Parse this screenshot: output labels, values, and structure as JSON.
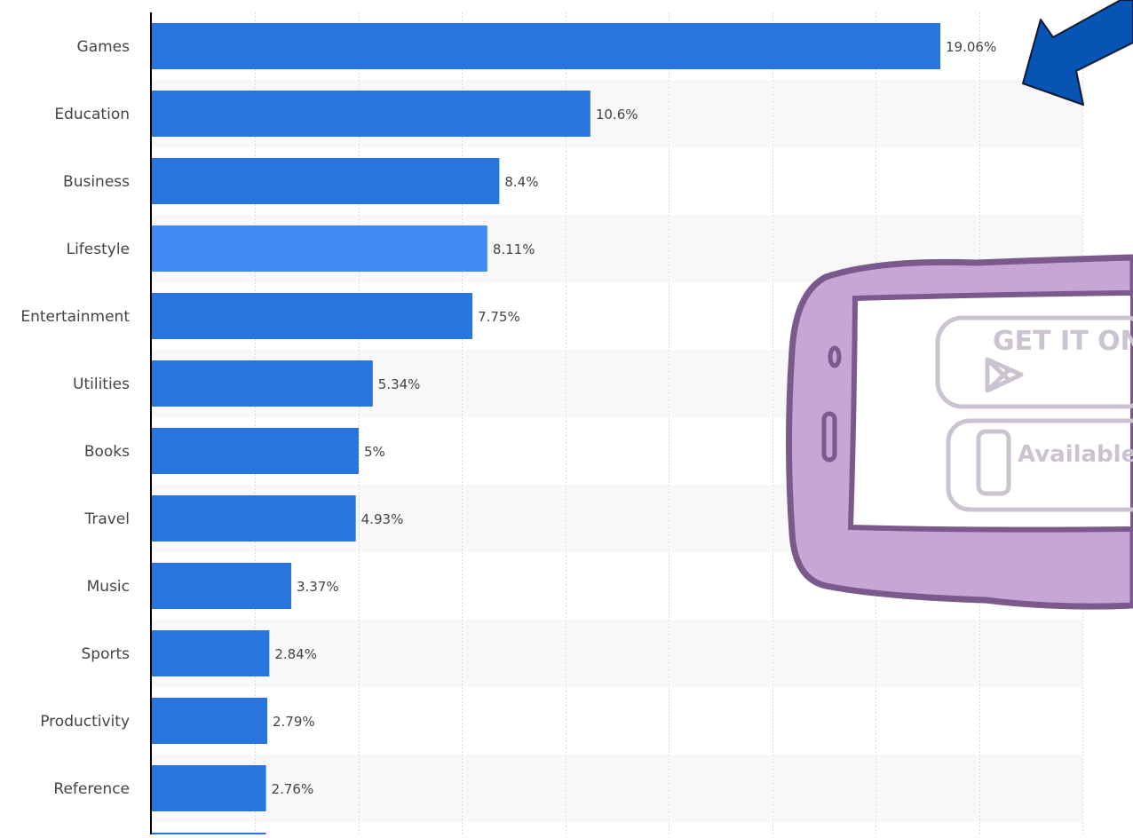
{
  "chart_data": {
    "type": "bar",
    "orientation": "horizontal",
    "title": "",
    "xlabel": "",
    "ylabel": "",
    "categories": [
      "Games",
      "Education",
      "Business",
      "Lifestyle",
      "Entertainment",
      "Utilities",
      "Books",
      "Travel",
      "Music",
      "Sports",
      "Productivity",
      "Reference",
      ""
    ],
    "values": [
      19.06,
      10.6,
      8.4,
      8.11,
      7.75,
      5.34,
      5,
      4.93,
      3.37,
      2.84,
      2.79,
      2.76,
      2.76
    ],
    "value_labels": [
      "19.06%",
      "10.6%",
      "8.4%",
      "8.11%",
      "7.75%",
      "5.34%",
      "5%",
      "4.93%",
      "3.37%",
      "2.84%",
      "2.79%",
      "2.76%",
      ""
    ],
    "highlight_index": 3,
    "xlim": [
      0,
      22.5
    ],
    "grid": true,
    "legend": "none",
    "colors": {
      "bar": "#2876dd",
      "highlight": "#418bf7",
      "grid": "#dcdcdc",
      "band": "#f8f8f8",
      "axis": "#000000",
      "label": "#444444"
    }
  },
  "overlay": {
    "arrow_color": "#0654b4",
    "arrow_outline": "#0a1a33",
    "tablet_fill": "#c7a6d6",
    "tablet_outline": "#7a5a8c",
    "tablet_screen": "#ffffff",
    "badge_outline": "#cbc3cf",
    "badge_google_text": "GET IT ON Google",
    "badge_apple_text": "Available App Store"
  }
}
